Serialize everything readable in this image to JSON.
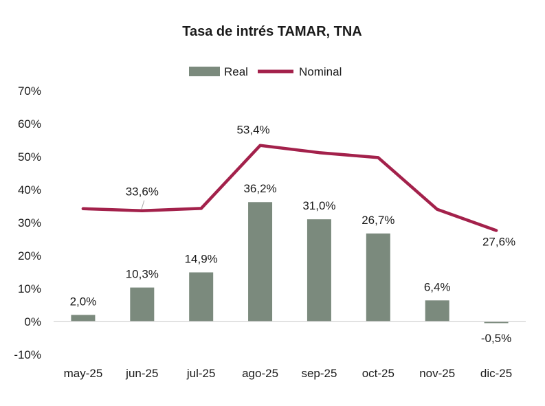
{
  "chart_data": {
    "type": "bar",
    "title": "Tasa de intrés TAMAR, TNA",
    "categories": [
      "may-25",
      "jun-25",
      "jul-25",
      "ago-25",
      "sep-25",
      "oct-25",
      "nov-25",
      "dic-25"
    ],
    "series": [
      {
        "name": "Real",
        "kind": "bar",
        "color": "#7b8a7d",
        "values": [
          2.0,
          10.3,
          14.9,
          36.2,
          31.0,
          26.7,
          6.4,
          -0.5
        ],
        "labels": [
          "2,0%",
          "10,3%",
          "14,9%",
          "36,2%",
          "31,0%",
          "26,7%",
          "6,4%",
          "-0,5%"
        ]
      },
      {
        "name": "Nominal",
        "kind": "line",
        "color": "#a3214b",
        "values": [
          34.2,
          33.6,
          34.3,
          53.4,
          51.2,
          49.7,
          34.0,
          27.6
        ],
        "labels": [
          "",
          "33,6%",
          "",
          "53,4%",
          "",
          "",
          "",
          "27,6%"
        ]
      }
    ],
    "ylim": [
      -10,
      70
    ],
    "yticks": [
      -10,
      0,
      10,
      20,
      30,
      40,
      50,
      60,
      70
    ],
    "ytick_labels": [
      "-10%",
      "0%",
      "10%",
      "20%",
      "30%",
      "40%",
      "50%",
      "60%",
      "70%"
    ],
    "legend_position": "top-center",
    "grid": false
  }
}
